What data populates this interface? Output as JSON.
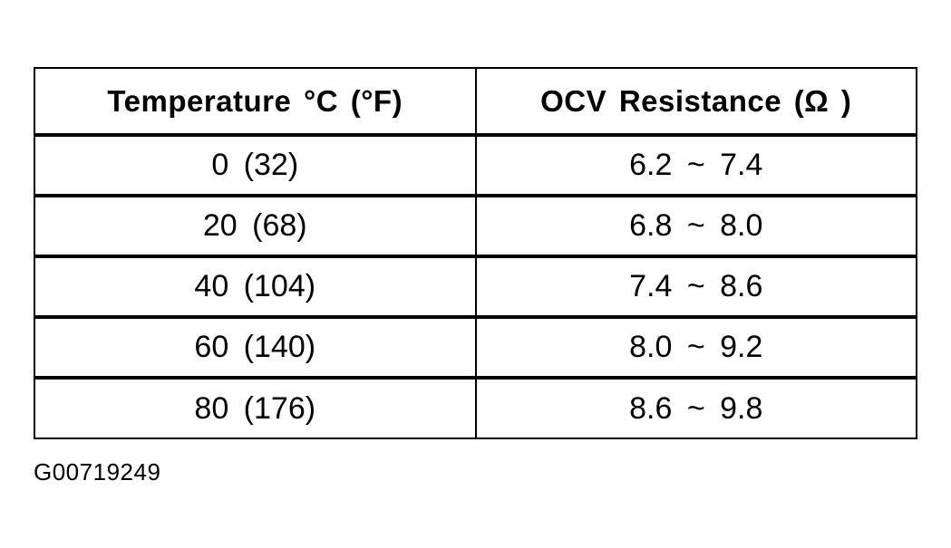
{
  "figure": {
    "caption_code": "G00719249"
  },
  "table": {
    "headers": [
      {
        "label": "Temperature °C (°F)"
      },
      {
        "label": "OCV Resistance (Ω )"
      }
    ],
    "rows": [
      {
        "temperature": "0 (32)",
        "resistance": "6.2 ~ 7.4"
      },
      {
        "temperature": "20 (68)",
        "resistance": "6.8 ~ 8.0"
      },
      {
        "temperature": "40 (104)",
        "resistance": "7.4 ~ 8.6"
      },
      {
        "temperature": "60 (140)",
        "resistance": "8.0 ~ 9.2"
      },
      {
        "temperature": "80 (176)",
        "resistance": "8.6 ~ 9.8"
      }
    ]
  },
  "chart_data": {
    "type": "table",
    "columns": [
      "Temperature °C (°F)",
      "OCV Resistance (Ω)"
    ],
    "rows": [
      [
        "0 (32)",
        "6.2 ~ 7.4"
      ],
      [
        "20 (68)",
        "6.8 ~ 8.0"
      ],
      [
        "40 (104)",
        "7.4 ~ 8.6"
      ],
      [
        "60 (140)",
        "8.0 ~ 9.2"
      ],
      [
        "80 (176)",
        "8.6 ~ 9.8"
      ]
    ]
  },
  "colors": {
    "background": "#ffffff",
    "border": "#000000",
    "text": "#000000"
  }
}
